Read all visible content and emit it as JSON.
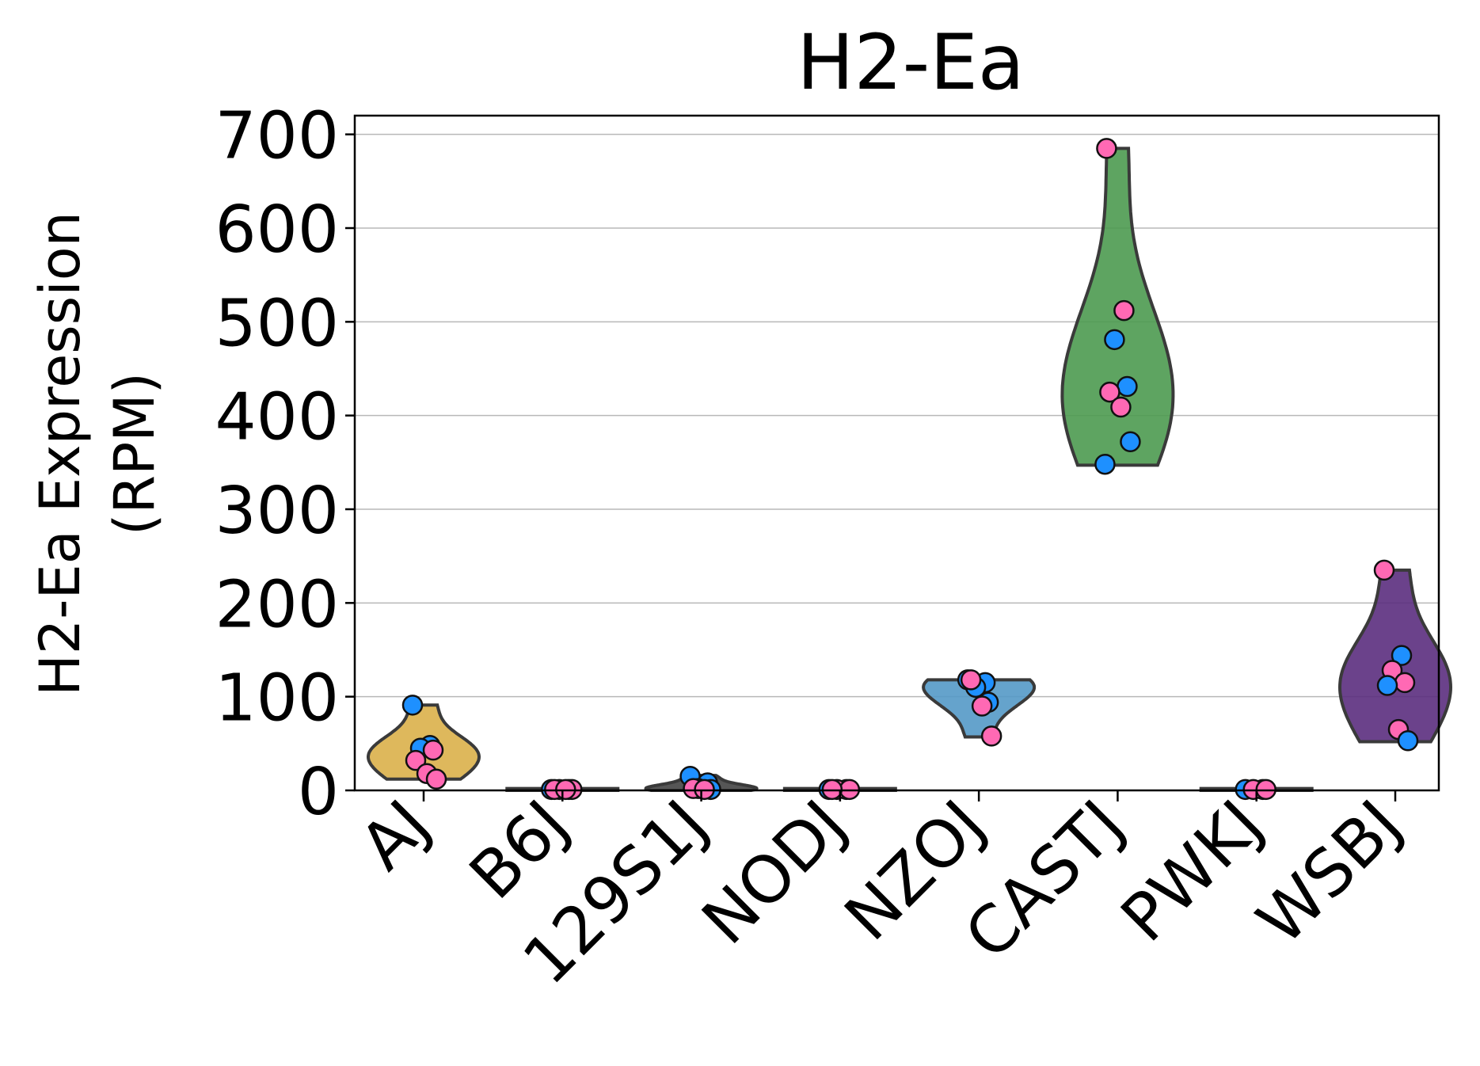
{
  "chart_data": {
    "type": "violin",
    "title": "H2-Ea",
    "ylabel": [
      "H2-Ea Expression",
      "(RPM)"
    ],
    "xlabel": "",
    "ylim": [
      0,
      720
    ],
    "yticks": [
      "0",
      "100",
      "200",
      "300",
      "400",
      "500",
      "600",
      "700"
    ],
    "ytick_values": [
      0,
      100,
      200,
      300,
      400,
      500,
      600,
      700
    ],
    "grid": "horizontal",
    "categories": [
      "AJ",
      "B6J",
      "129S1J",
      "NODJ",
      "NZOJ",
      "CASTJ",
      "PWKJ",
      "WSBJ"
    ],
    "colors": {
      "point_a": "#1e90ff",
      "point_b": "#ff69b4"
    },
    "groups": [
      {
        "category": "AJ",
        "fill": "#dab04a",
        "range": [
          12,
          91
        ],
        "points": [
          {
            "value": 91,
            "group": "a"
          },
          {
            "value": 48,
            "group": "a"
          },
          {
            "value": 45,
            "group": "a"
          },
          {
            "value": 43,
            "group": "b"
          },
          {
            "value": 32,
            "group": "b"
          },
          {
            "value": 18,
            "group": "b"
          },
          {
            "value": 12,
            "group": "b"
          }
        ]
      },
      {
        "category": "B6J",
        "fill": "#2a2a2a",
        "range": [
          0,
          2
        ],
        "points": [
          {
            "value": 1,
            "group": "a"
          },
          {
            "value": 1,
            "group": "a"
          },
          {
            "value": 1,
            "group": "a"
          },
          {
            "value": 1,
            "group": "b"
          },
          {
            "value": 1,
            "group": "b"
          },
          {
            "value": 1,
            "group": "b"
          }
        ]
      },
      {
        "category": "129S1J",
        "fill": "#444444",
        "range": [
          0,
          16
        ],
        "points": [
          {
            "value": 15,
            "group": "a"
          },
          {
            "value": 8,
            "group": "a"
          },
          {
            "value": 2,
            "group": "a"
          },
          {
            "value": 1,
            "group": "a"
          },
          {
            "value": 2,
            "group": "b"
          },
          {
            "value": 1,
            "group": "b"
          }
        ]
      },
      {
        "category": "NODJ",
        "fill": "#2a2a2a",
        "range": [
          0,
          2
        ],
        "points": [
          {
            "value": 1,
            "group": "a"
          },
          {
            "value": 1,
            "group": "a"
          },
          {
            "value": 1,
            "group": "b"
          },
          {
            "value": 1,
            "group": "b"
          },
          {
            "value": 1,
            "group": "b"
          }
        ]
      },
      {
        "category": "NZOJ",
        "fill": "#5499c7",
        "range": [
          57,
          118
        ],
        "points": [
          {
            "value": 118,
            "group": "a"
          },
          {
            "value": 115,
            "group": "a"
          },
          {
            "value": 110,
            "group": "a"
          },
          {
            "value": 94,
            "group": "a"
          },
          {
            "value": 118,
            "group": "b"
          },
          {
            "value": 90,
            "group": "b"
          },
          {
            "value": 58,
            "group": "b"
          }
        ]
      },
      {
        "category": "CASTJ",
        "fill": "#4c9a50",
        "range": [
          347,
          685
        ],
        "points": [
          {
            "value": 685,
            "group": "b"
          },
          {
            "value": 512,
            "group": "b"
          },
          {
            "value": 481,
            "group": "a"
          },
          {
            "value": 431,
            "group": "a"
          },
          {
            "value": 425,
            "group": "b"
          },
          {
            "value": 409,
            "group": "b"
          },
          {
            "value": 372,
            "group": "a"
          },
          {
            "value": 348,
            "group": "a"
          }
        ]
      },
      {
        "category": "PWKJ",
        "fill": "#2a2a2a",
        "range": [
          0,
          2
        ],
        "points": [
          {
            "value": 1,
            "group": "a"
          },
          {
            "value": 1,
            "group": "a"
          },
          {
            "value": 1,
            "group": "b"
          },
          {
            "value": 1,
            "group": "b"
          }
        ]
      },
      {
        "category": "WSBJ",
        "fill": "#5b2d7e",
        "range": [
          52,
          235
        ],
        "points": [
          {
            "value": 235,
            "group": "b"
          },
          {
            "value": 144,
            "group": "a"
          },
          {
            "value": 128,
            "group": "b"
          },
          {
            "value": 115,
            "group": "b"
          },
          {
            "value": 112,
            "group": "a"
          },
          {
            "value": 65,
            "group": "b"
          },
          {
            "value": 53,
            "group": "a"
          }
        ]
      }
    ]
  }
}
